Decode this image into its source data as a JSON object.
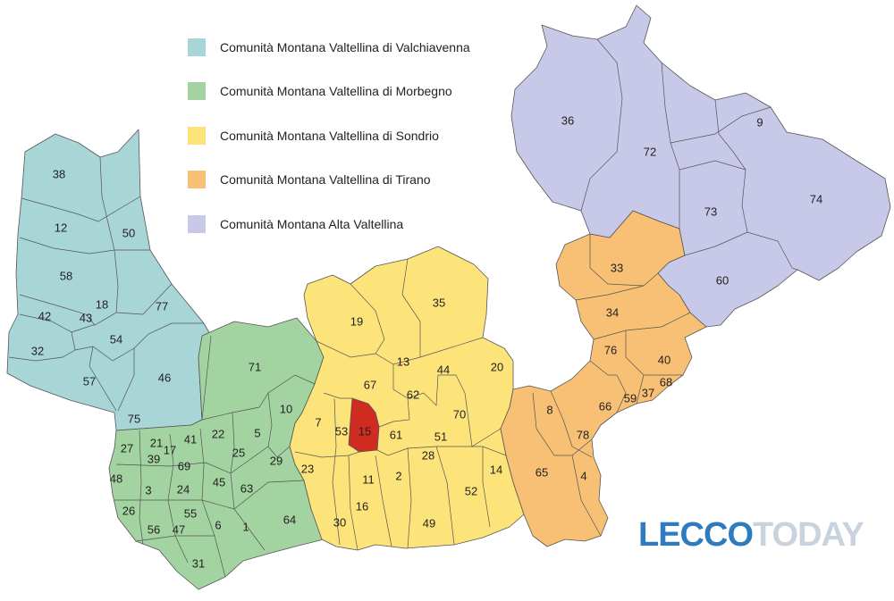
{
  "legend": [
    {
      "label": "Comunità Montana Valtellina di Valchiavenna",
      "color": "#a8d5d6"
    },
    {
      "label": "Comunità Montana Valtellina di Morbegno",
      "color": "#a3d3a1"
    },
    {
      "label": "Comunità Montana Valtellina di Sondrio",
      "color": "#fde47a"
    },
    {
      "label": "Comunità Montana Valtellina di Tirano",
      "color": "#f8c074"
    },
    {
      "label": "Comunità Montana Alta Valtellina",
      "color": "#c8c9e8"
    }
  ],
  "highlight_color": "#d02b20",
  "logo": {
    "part_a": "LECCO",
    "part_b": "TODAY"
  },
  "municipalities": [
    {
      "n": "38",
      "g": "valchiavenna"
    },
    {
      "n": "12",
      "g": "valchiavenna"
    },
    {
      "n": "50",
      "g": "valchiavenna"
    },
    {
      "n": "58",
      "g": "valchiavenna"
    },
    {
      "n": "18",
      "g": "valchiavenna"
    },
    {
      "n": "77",
      "g": "valchiavenna"
    },
    {
      "n": "42",
      "g": "valchiavenna"
    },
    {
      "n": "43",
      "g": "valchiavenna"
    },
    {
      "n": "54",
      "g": "valchiavenna"
    },
    {
      "n": "32",
      "g": "valchiavenna"
    },
    {
      "n": "57",
      "g": "valchiavenna"
    },
    {
      "n": "46",
      "g": "valchiavenna"
    },
    {
      "n": "75",
      "g": "valchiavenna"
    },
    {
      "n": "71",
      "g": "morbegno"
    },
    {
      "n": "10",
      "g": "morbegno"
    },
    {
      "n": "27",
      "g": "morbegno"
    },
    {
      "n": "21",
      "g": "morbegno"
    },
    {
      "n": "17",
      "g": "morbegno"
    },
    {
      "n": "41",
      "g": "morbegno"
    },
    {
      "n": "22",
      "g": "morbegno"
    },
    {
      "n": "5",
      "g": "morbegno"
    },
    {
      "n": "39",
      "g": "morbegno"
    },
    {
      "n": "69",
      "g": "morbegno"
    },
    {
      "n": "25",
      "g": "morbegno"
    },
    {
      "n": "29",
      "g": "morbegno"
    },
    {
      "n": "48",
      "g": "morbegno"
    },
    {
      "n": "3",
      "g": "morbegno"
    },
    {
      "n": "24",
      "g": "morbegno"
    },
    {
      "n": "45",
      "g": "morbegno"
    },
    {
      "n": "63",
      "g": "morbegno"
    },
    {
      "n": "26",
      "g": "morbegno"
    },
    {
      "n": "55",
      "g": "morbegno"
    },
    {
      "n": "56",
      "g": "morbegno"
    },
    {
      "n": "47",
      "g": "morbegno"
    },
    {
      "n": "6",
      "g": "morbegno"
    },
    {
      "n": "1",
      "g": "morbegno"
    },
    {
      "n": "64",
      "g": "morbegno"
    },
    {
      "n": "31",
      "g": "morbegno"
    },
    {
      "n": "19",
      "g": "sondrio"
    },
    {
      "n": "35",
      "g": "sondrio"
    },
    {
      "n": "13",
      "g": "sondrio"
    },
    {
      "n": "44",
      "g": "sondrio"
    },
    {
      "n": "20",
      "g": "sondrio"
    },
    {
      "n": "67",
      "g": "sondrio"
    },
    {
      "n": "62",
      "g": "sondrio"
    },
    {
      "n": "7",
      "g": "sondrio"
    },
    {
      "n": "53",
      "g": "sondrio"
    },
    {
      "n": "15",
      "g": "sondrio",
      "highlight": true
    },
    {
      "n": "61",
      "g": "sondrio"
    },
    {
      "n": "70",
      "g": "sondrio"
    },
    {
      "n": "51",
      "g": "sondrio"
    },
    {
      "n": "28",
      "g": "sondrio"
    },
    {
      "n": "23",
      "g": "sondrio"
    },
    {
      "n": "11",
      "g": "sondrio"
    },
    {
      "n": "2",
      "g": "sondrio"
    },
    {
      "n": "14",
      "g": "sondrio"
    },
    {
      "n": "52",
      "g": "sondrio"
    },
    {
      "n": "16",
      "g": "sondrio"
    },
    {
      "n": "30",
      "g": "sondrio"
    },
    {
      "n": "49",
      "g": "sondrio"
    },
    {
      "n": "33",
      "g": "tirano"
    },
    {
      "n": "34",
      "g": "tirano"
    },
    {
      "n": "76",
      "g": "tirano"
    },
    {
      "n": "40",
      "g": "tirano"
    },
    {
      "n": "68",
      "g": "tirano"
    },
    {
      "n": "37",
      "g": "tirano"
    },
    {
      "n": "59",
      "g": "tirano"
    },
    {
      "n": "66",
      "g": "tirano"
    },
    {
      "n": "8",
      "g": "tirano"
    },
    {
      "n": "78",
      "g": "tirano"
    },
    {
      "n": "65",
      "g": "tirano"
    },
    {
      "n": "4",
      "g": "tirano"
    },
    {
      "n": "36",
      "g": "alta"
    },
    {
      "n": "72",
      "g": "alta"
    },
    {
      "n": "9",
      "g": "alta"
    },
    {
      "n": "73",
      "g": "alta"
    },
    {
      "n": "74",
      "g": "alta"
    },
    {
      "n": "60",
      "g": "alta"
    }
  ]
}
